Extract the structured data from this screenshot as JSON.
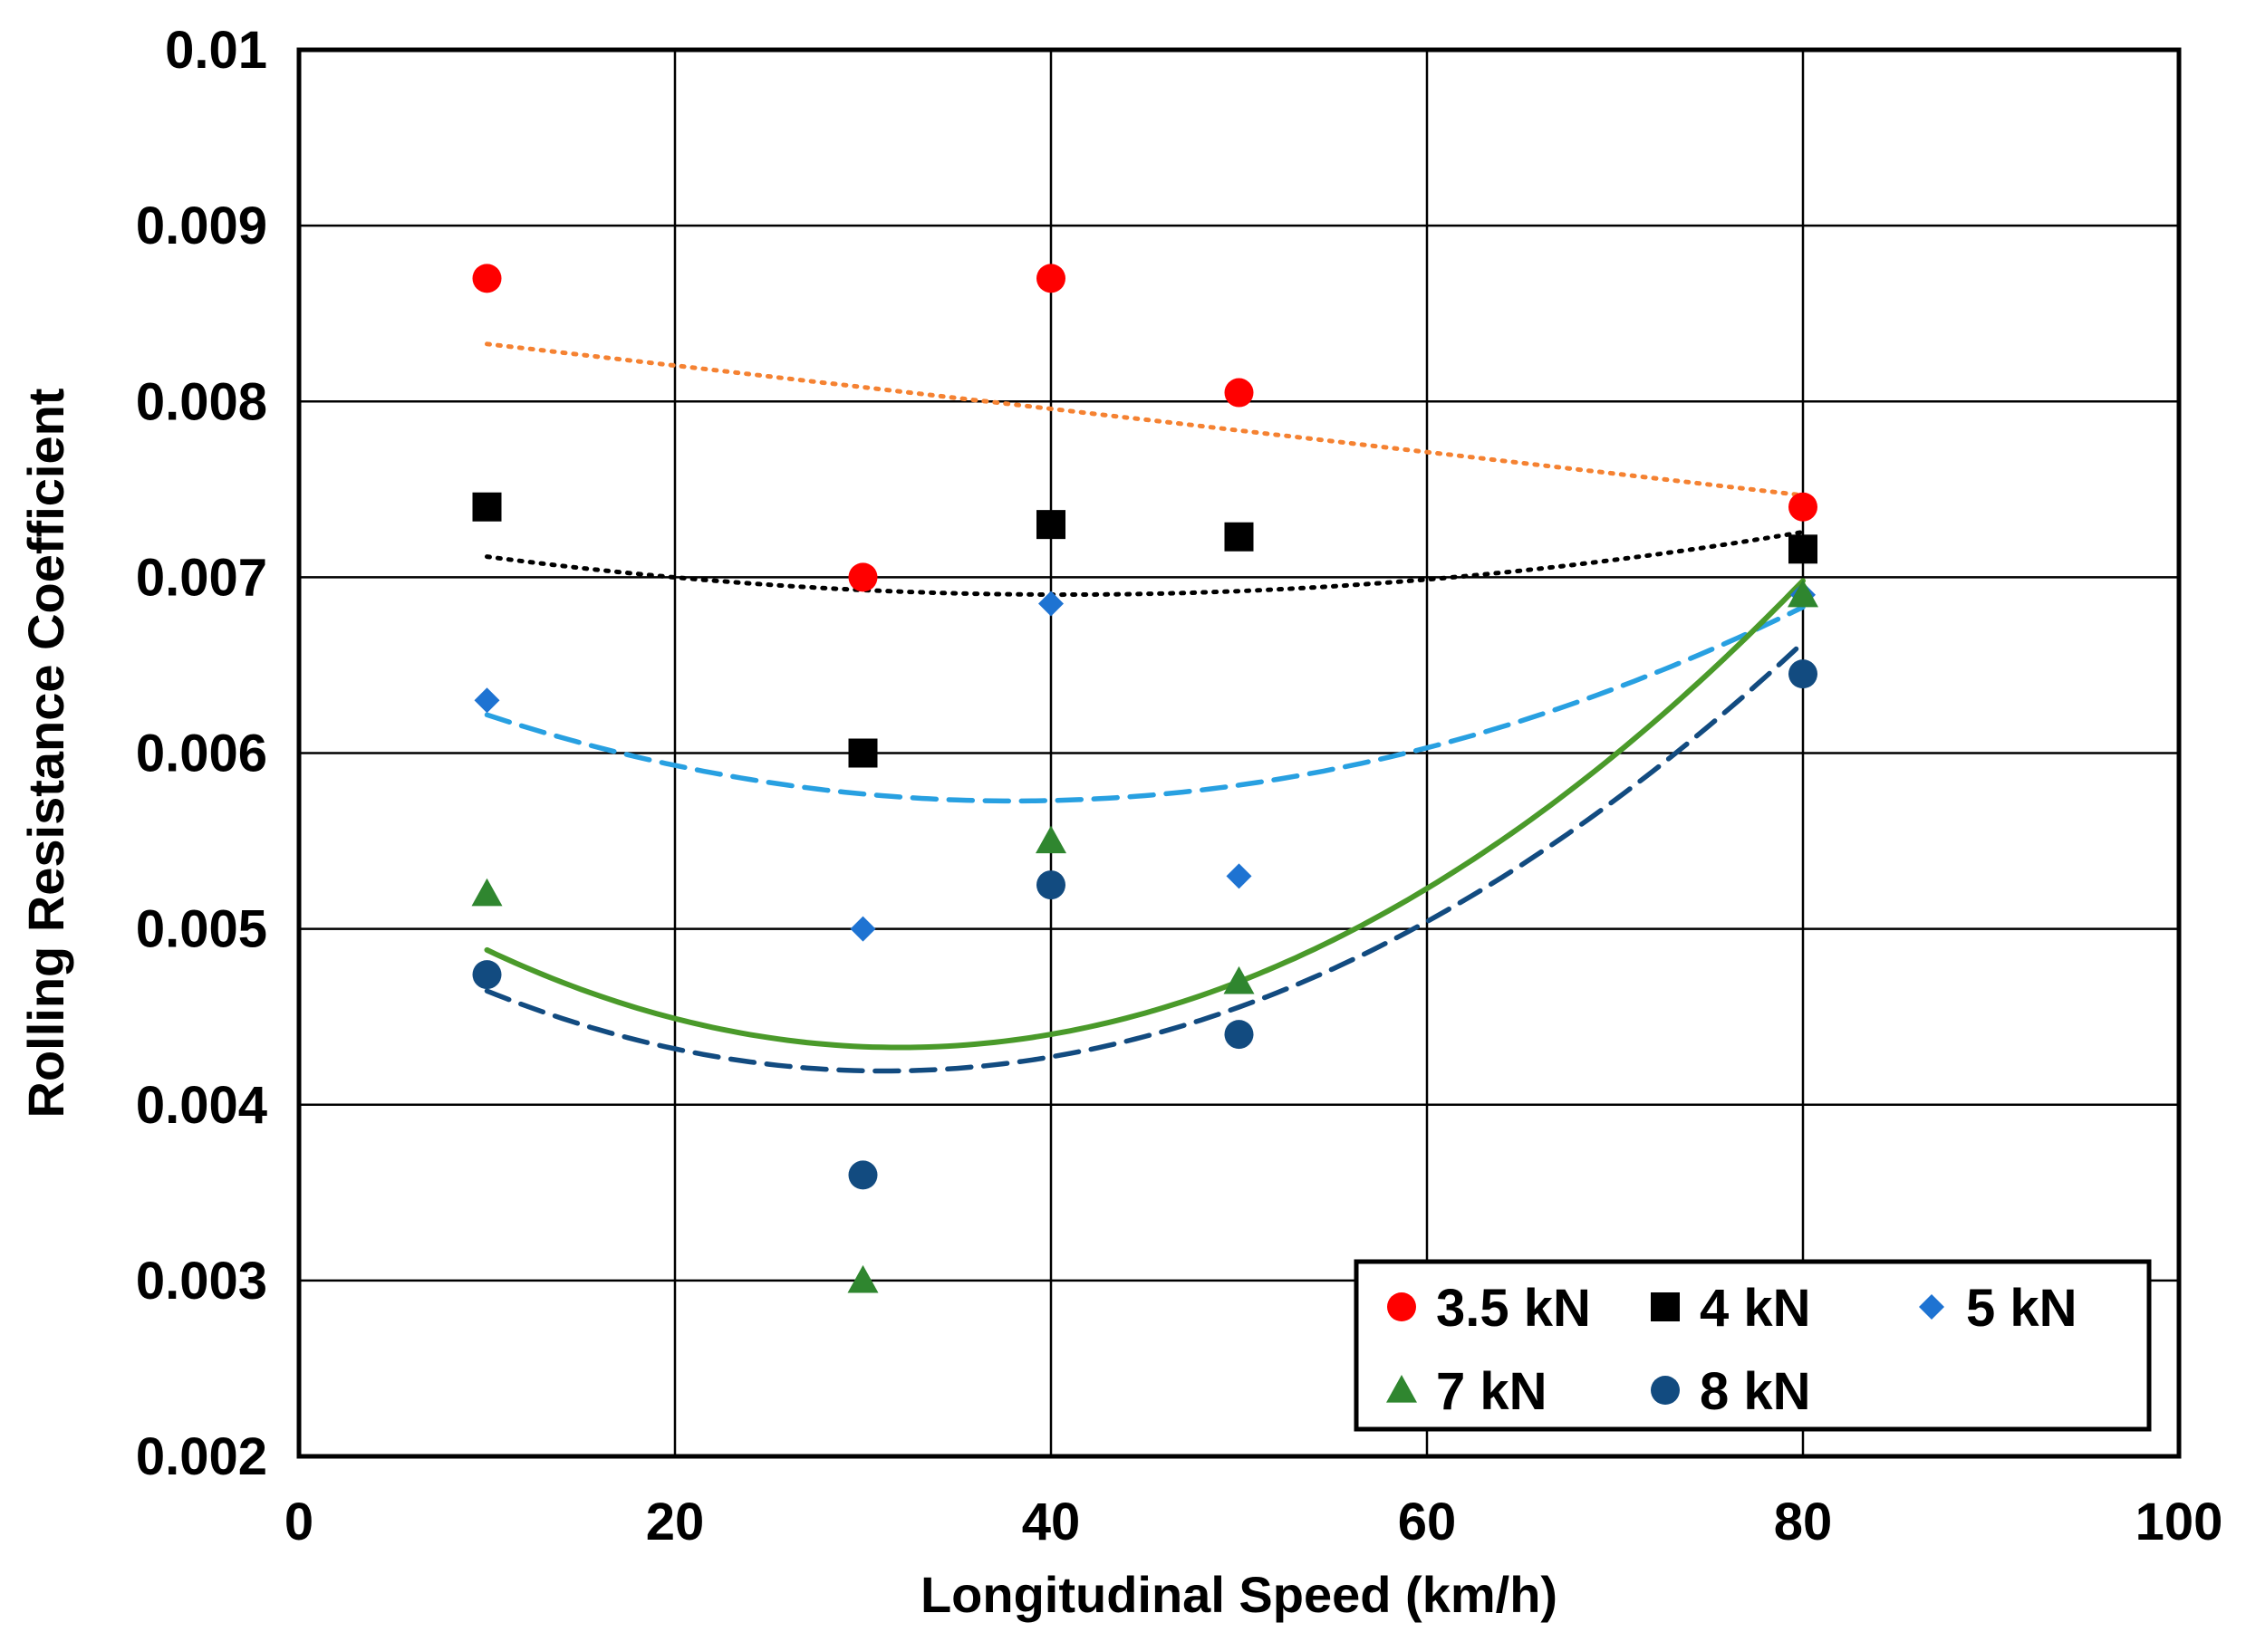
{
  "chart_data": {
    "type": "scatter",
    "title": "",
    "xlabel": "Longitudinal Speed (km/h)",
    "ylabel": "Rolling Resistance Coefficient",
    "xlim": [
      0,
      100
    ],
    "ylim": [
      0.002,
      0.01
    ],
    "xticks": [
      0,
      20,
      40,
      60,
      80,
      100
    ],
    "xtick_labels": [
      "0",
      "20",
      "40",
      "60",
      "80",
      "100"
    ],
    "yticks": [
      0.002,
      0.003,
      0.004,
      0.005,
      0.006,
      0.007,
      0.008,
      0.009,
      0.01
    ],
    "ytick_labels": [
      "0.002",
      "0.003",
      "0.004",
      "0.005",
      "0.006",
      "0.007",
      "0.008",
      "0.009",
      "0.01"
    ],
    "grid": true,
    "legend_position": "bottom-right",
    "series": [
      {
        "name": "3.5 kN",
        "marker": "circle",
        "color": "#ff0000",
        "x": [
          10,
          30,
          40,
          50,
          80
        ],
        "y": [
          0.0087,
          0.007,
          0.0087,
          0.00805,
          0.0074
        ],
        "trendline": {
          "type": "linear",
          "style": "dotted",
          "color": "#f58232",
          "coeffs": [
            0.00845,
            -1.23e-05
          ]
        }
      },
      {
        "name": "4 kN",
        "marker": "square",
        "color": "#000000",
        "x": [
          10,
          30,
          40,
          50,
          80
        ],
        "y": [
          0.0074,
          0.006,
          0.0073,
          0.00723,
          0.00716
        ],
        "trendline": {
          "type": "poly2",
          "style": "dotted",
          "color": "#000000",
          "coeffs": [
            0.0072813,
            -1.87e-05,
            2.3e-07
          ]
        }
      },
      {
        "name": "5 kN",
        "marker": "diamond",
        "color": "#1e73d2",
        "x": [
          10,
          30,
          40,
          50,
          80
        ],
        "y": [
          0.0063,
          0.005,
          0.00685,
          0.0053,
          0.0069
        ],
        "trendline": {
          "type": "poly2",
          "style": "dashed",
          "color": "#28a0e1",
          "coeffs": [
            0.00663,
            -4.75e-05,
            6.25e-07
          ]
        }
      },
      {
        "name": "7 kN",
        "marker": "triangle",
        "color": "#2f862f",
        "x": [
          10,
          30,
          40,
          50,
          80
        ],
        "y": [
          0.0052,
          0.003,
          0.0055,
          0.0047,
          0.0069
        ],
        "trendline": {
          "type": "poly2",
          "style": "solid",
          "color": "#4a9a2a",
          "coeffs": [
            0.0055,
            -7.35e-05,
            1.15e-06
          ]
        }
      },
      {
        "name": "8 kN",
        "marker": "circle",
        "color": "#124b80",
        "x": [
          10,
          30,
          40,
          50,
          80
        ],
        "y": [
          0.00474,
          0.0036,
          0.00525,
          0.0044,
          0.00645
        ],
        "trendline": {
          "type": "poly2",
          "style": "dashed",
          "color": "#124b80",
          "coeffs": [
            0.00518,
            -6.35e-05,
            1.02e-06
          ]
        }
      }
    ]
  }
}
